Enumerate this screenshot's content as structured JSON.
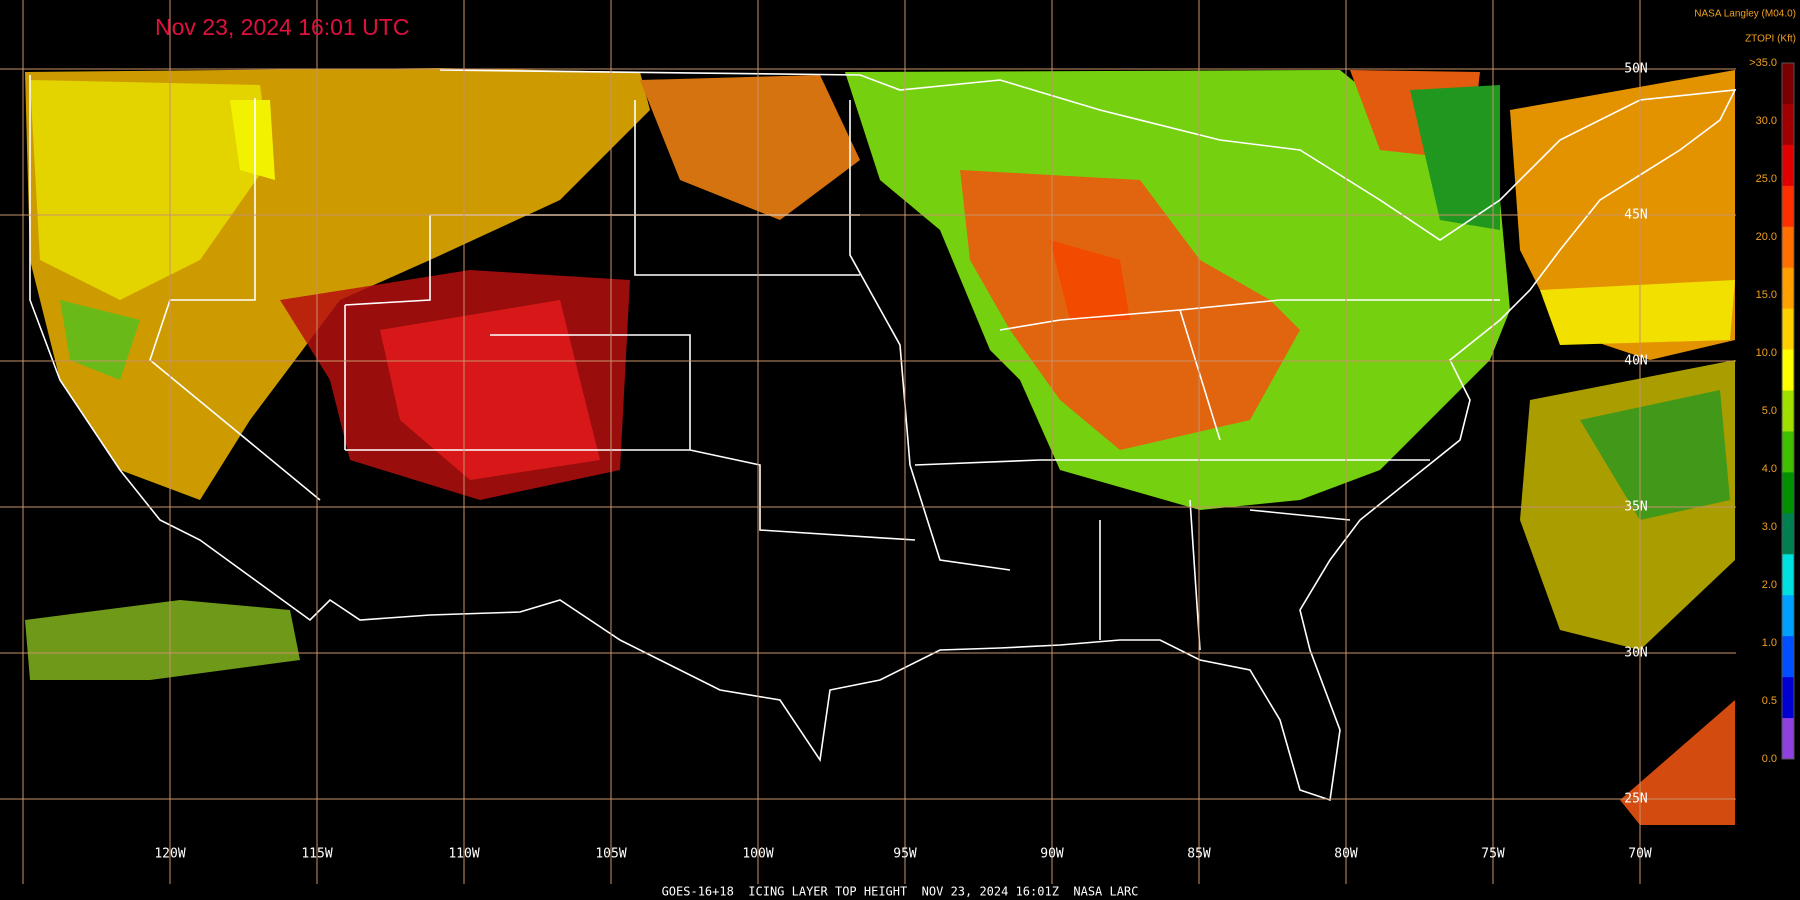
{
  "header": {
    "title": "Nov 23, 2024 16:01 UTC",
    "source": "NASA Langley (M04.0)",
    "product": "ZTOPI (Kft)"
  },
  "colorbar": {
    "labels": [
      ">35.0",
      "30.0",
      "25.0",
      "20.0",
      "15.0",
      "10.0",
      "5.0",
      "4.0",
      "3.0",
      "2.0",
      "1.0",
      "0.5",
      "0.0"
    ]
  },
  "longitude_labels": [
    "120W",
    "115W",
    "110W",
    "105W",
    "100W",
    "95W",
    "90W",
    "85W",
    "80W",
    "75W",
    "70W"
  ],
  "latitude_labels": [
    "50N",
    "45N",
    "40N",
    "35N",
    "30N",
    "25N"
  ],
  "footer": "GOES-16+18  ICING LAYER TOP HEIGHT  NOV 23, 2024 16:01Z  NASA LARC"
}
